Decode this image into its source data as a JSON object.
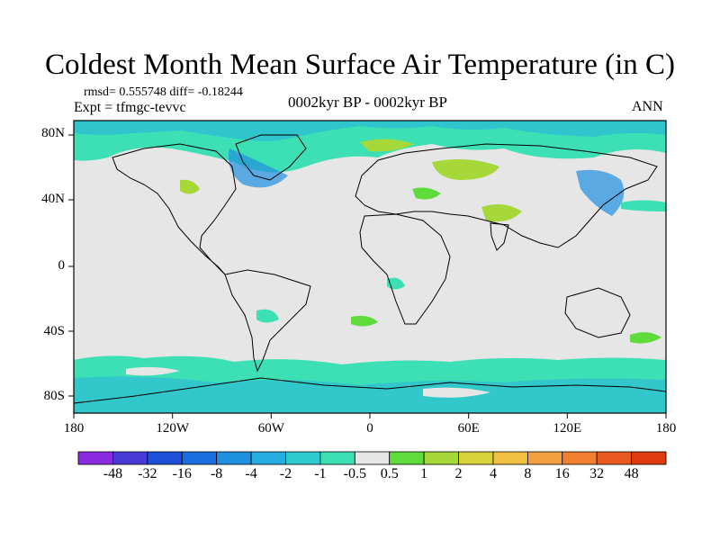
{
  "figure": {
    "title": "Coldest Month Mean Surface Air Temperature (in C)",
    "stats": "rmsd= 0.555748 diff= -0.18244",
    "experiment": "Expt = tfmgc-tevvc",
    "period": "0002kyr BP - 0002kyr BP",
    "season": "ANN"
  },
  "axes": {
    "lat_labels": [
      "80N",
      "40N",
      "0",
      "40S",
      "80S"
    ],
    "lon_labels": [
      "180",
      "120W",
      "60W",
      "0",
      "60E",
      "120E",
      "180"
    ]
  },
  "colorbar": {
    "levels": [
      "-48",
      "-32",
      "-16",
      "-8",
      "-4",
      "-2",
      "-1",
      "-0.5",
      "0.5",
      "1",
      "2",
      "4",
      "8",
      "16",
      "32",
      "48"
    ],
    "colors": [
      "#8a2be2",
      "#4b3bd6",
      "#1e4fd8",
      "#1a6fe0",
      "#1f8fe0",
      "#27aee0",
      "#2fc9d0",
      "#3de0b5",
      "#e6e6e6",
      "#5fdc3c",
      "#a6d83a",
      "#d8d33a",
      "#f0c040",
      "#f0a040",
      "#f08030",
      "#e85a20",
      "#e03a10"
    ]
  },
  "map": {
    "background_color": "#e6e6e6",
    "coastline_color": "#000000"
  }
}
